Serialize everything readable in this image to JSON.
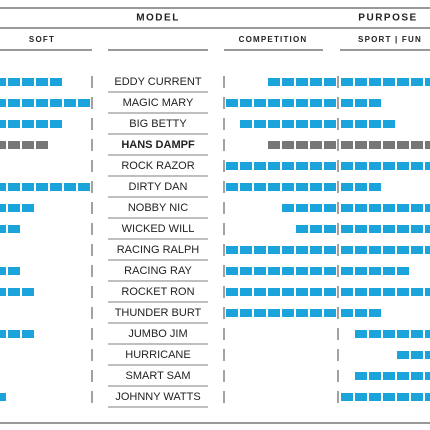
{
  "header": {
    "model": "MODEL",
    "purpose": "PURPOSE",
    "soft": "SOFT",
    "competition": "COMPETITION",
    "sport_fun": "SPORT | FUN"
  },
  "colors": {
    "normal": "#1ba3dc",
    "highlight": "#777777"
  },
  "rows": [
    {
      "name": "EDDY CURRENT",
      "soft": 5,
      "competition": 5,
      "sport_fun": [
        0,
        7
      ]
    },
    {
      "name": "MAGIC MARY",
      "soft": 7,
      "competition": 8,
      "sport_fun": [
        0,
        3
      ]
    },
    {
      "name": "BIG BETTY",
      "soft": 5,
      "competition": 7,
      "sport_fun": [
        0,
        4
      ]
    },
    {
      "name": "HANS DAMPF",
      "soft": 4,
      "competition": 5,
      "sport_fun": [
        0,
        7
      ],
      "highlight": true
    },
    {
      "name": "ROCK RAZOR",
      "soft": 0,
      "competition": 8,
      "sport_fun": [
        0,
        7
      ]
    },
    {
      "name": "DIRTY DAN",
      "soft": 7,
      "competition": 8,
      "sport_fun": [
        0,
        3
      ]
    },
    {
      "name": "NOBBY NIC",
      "soft": 3,
      "competition": 4,
      "sport_fun": [
        0,
        7
      ]
    },
    {
      "name": "WICKED WILL",
      "soft": 2,
      "competition": 3,
      "sport_fun": [
        0,
        7
      ]
    },
    {
      "name": "RACING RALPH",
      "soft": 0,
      "competition": 8,
      "sport_fun": [
        0,
        7
      ]
    },
    {
      "name": "RACING RAY",
      "soft": 2,
      "competition": 8,
      "sport_fun": [
        0,
        5
      ]
    },
    {
      "name": "ROCKET RON",
      "soft": 3,
      "competition": 8,
      "sport_fun": [
        0,
        7
      ]
    },
    {
      "name": "THUNDER BURT",
      "soft": 0,
      "competition": 8,
      "sport_fun": [
        0,
        3
      ]
    },
    {
      "name": "JUMBO JIM",
      "soft": 3,
      "competition": 0,
      "sport_fun": [
        1,
        6
      ]
    },
    {
      "name": "HURRICANE",
      "soft": 0,
      "competition": 0,
      "sport_fun": [
        4,
        3
      ]
    },
    {
      "name": "SMART SAM",
      "soft": 0,
      "competition": 0,
      "sport_fun": [
        1,
        6
      ]
    },
    {
      "name": "JOHNNY WATTS",
      "soft": 1,
      "competition": 0,
      "sport_fun": [
        0,
        7
      ]
    }
  ]
}
